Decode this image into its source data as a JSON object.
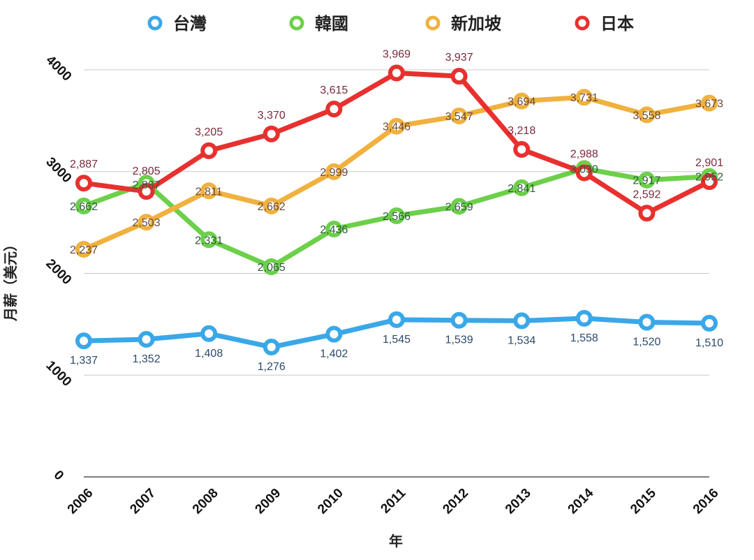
{
  "chart_data": {
    "type": "line",
    "title": "",
    "xlabel": "年",
    "ylabel": "月薪（美元）",
    "ylim": [
      0,
      4000
    ],
    "yticks": [
      "0",
      "1000",
      "2000",
      "3000",
      "4000"
    ],
    "grid": true,
    "legend_position": "top",
    "categories": [
      "2006",
      "2007",
      "2008",
      "2009",
      "2010",
      "2011",
      "2012",
      "2013",
      "2014",
      "2015",
      "2016"
    ],
    "series": [
      {
        "name": "台灣",
        "color": "#3aa8e8",
        "label_color": "#2b4a6a",
        "label_pos": "below",
        "values": [
          1337,
          1352,
          1408,
          1276,
          1402,
          1545,
          1539,
          1534,
          1558,
          1520,
          1510
        ],
        "labels": [
          "1,337",
          "1,352",
          "1,408",
          "1,276",
          "1,402",
          "1,545",
          "1,539",
          "1,534",
          "1,558",
          "1,520",
          "1,510"
        ]
      },
      {
        "name": "韓國",
        "color": "#6cd04a",
        "label_color": "#2f5a3a",
        "label_pos": "center",
        "values": [
          2662,
          2887,
          2331,
          2065,
          2436,
          2566,
          2659,
          2841,
          3030,
          2917,
          2952
        ],
        "labels": [
          "2,662",
          "2,887",
          "2,331",
          "2,065",
          "2,436",
          "2,566",
          "2,659",
          "2,841",
          "3,030",
          "2,917",
          "2,952"
        ]
      },
      {
        "name": "新加坡",
        "color": "#f0b13e",
        "label_color": "#6a4a3a",
        "label_pos": "center",
        "values": [
          2237,
          2503,
          2811,
          2662,
          2999,
          3446,
          3547,
          3694,
          3731,
          3558,
          3673
        ],
        "labels": [
          "2,237",
          "2,503",
          "2,811",
          "2,662",
          "2,999",
          "3,446",
          "3,547",
          "3,694",
          "3,731",
          "3,558",
          "3,673"
        ]
      },
      {
        "name": "日本",
        "color": "#e8302e",
        "label_color": "#7a2a3a",
        "label_pos": "above",
        "values": [
          2887,
          2805,
          3205,
          3370,
          3615,
          3969,
          3937,
          3218,
          2988,
          2592,
          2901
        ],
        "labels": [
          "2,887",
          "2,805",
          "3,205",
          "3,370",
          "3,615",
          "3,969",
          "3,937",
          "3,218",
          "2,988",
          "2,592",
          "2,901"
        ]
      }
    ]
  }
}
